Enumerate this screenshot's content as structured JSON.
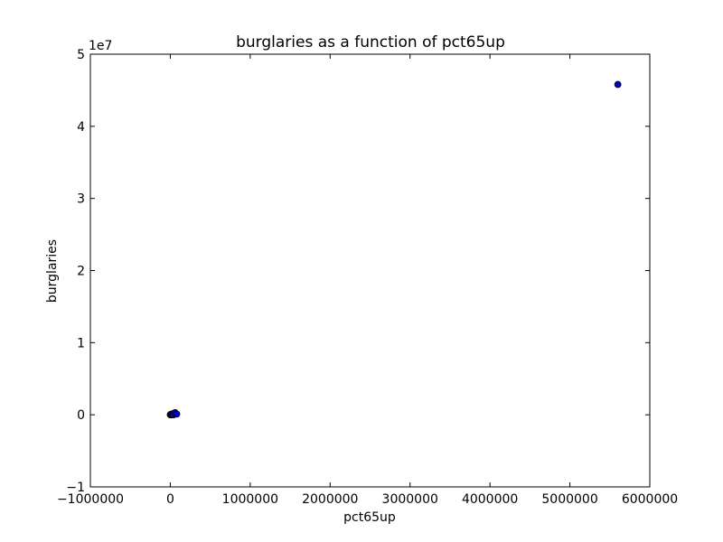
{
  "chart_data": {
    "type": "scatter",
    "title": "burglaries as a function of pct65up",
    "xlabel": "pct65up",
    "ylabel": "burglaries",
    "y_offset_label": "1e7",
    "xlim": [
      -1000000,
      6000000
    ],
    "ylim": [
      -10000000,
      50000000
    ],
    "x_ticks": [
      -1000000,
      0,
      1000000,
      2000000,
      3000000,
      4000000,
      5000000,
      6000000
    ],
    "x_tick_labels": [
      "−1000000",
      "0",
      "1000000",
      "2000000",
      "3000000",
      "4000000",
      "5000000",
      "6000000"
    ],
    "y_ticks": [
      -10000000,
      0,
      10000000,
      20000000,
      30000000,
      40000000,
      50000000
    ],
    "y_tick_labels": [
      "−1",
      "0",
      "1",
      "2",
      "3",
      "4",
      "5"
    ],
    "grid": false,
    "marker_color": "#0000cc",
    "points": [
      {
        "x": 0,
        "y": 0
      },
      {
        "x": 5000,
        "y": 50000
      },
      {
        "x": 10000,
        "y": 20000
      },
      {
        "x": 15000,
        "y": 0
      },
      {
        "x": 20000,
        "y": 100000
      },
      {
        "x": 30000,
        "y": 150000
      },
      {
        "x": 40000,
        "y": 0
      },
      {
        "x": 60000,
        "y": 300000
      },
      {
        "x": 80000,
        "y": 100000
      },
      {
        "x": 5600000,
        "y": 45800000
      }
    ]
  }
}
